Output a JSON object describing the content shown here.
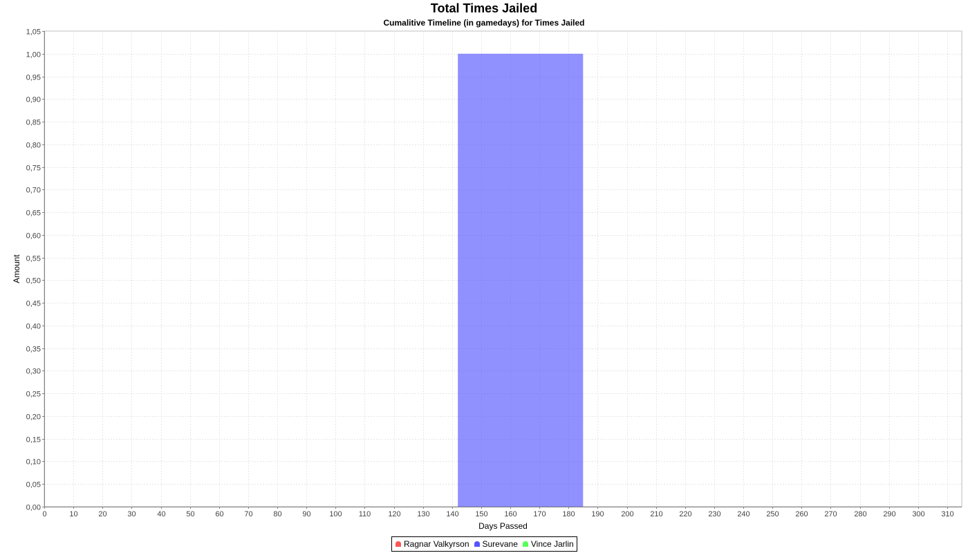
{
  "chart_data": {
    "type": "area",
    "title": "Total Times Jailed",
    "subtitle": "Cumalitive Timeline (in gamedays) for Times Jailed",
    "xlabel": "Days Passed",
    "ylabel": "Amount",
    "xlim": [
      0,
      315
    ],
    "ylim": [
      0,
      1.05
    ],
    "x_ticks": [
      0,
      10,
      20,
      30,
      40,
      50,
      60,
      70,
      80,
      90,
      100,
      110,
      120,
      130,
      140,
      150,
      160,
      170,
      180,
      190,
      200,
      210,
      220,
      230,
      240,
      250,
      260,
      270,
      280,
      290,
      300,
      310
    ],
    "y_ticks": [
      0,
      0.05,
      0.1,
      0.15,
      0.2,
      0.25,
      0.3,
      0.35,
      0.4,
      0.45,
      0.5,
      0.55,
      0.6,
      0.65,
      0.7,
      0.75,
      0.8,
      0.85,
      0.9,
      0.95,
      1.0,
      1.05
    ],
    "y_tick_labels": [
      "0,00",
      "0,05",
      "0,10",
      "0,15",
      "0,20",
      "0,25",
      "0,30",
      "0,35",
      "0,40",
      "0,45",
      "0,50",
      "0,55",
      "0,60",
      "0,65",
      "0,70",
      "0,75",
      "0,80",
      "0,85",
      "0,90",
      "0,95",
      "1,00",
      "1,05"
    ],
    "grid": true,
    "legend_position": "bottom-center",
    "series": [
      {
        "name": "Ragnar Valkyrson",
        "color": "#ff5555",
        "points": []
      },
      {
        "name": "Surevane",
        "color": "#5555ff",
        "points": [
          [
            142,
            0
          ],
          [
            142,
            1
          ],
          [
            185,
            1
          ],
          [
            185,
            0
          ]
        ]
      },
      {
        "name": "Vince Jarlin",
        "color": "#55ff55",
        "points": []
      }
    ]
  }
}
